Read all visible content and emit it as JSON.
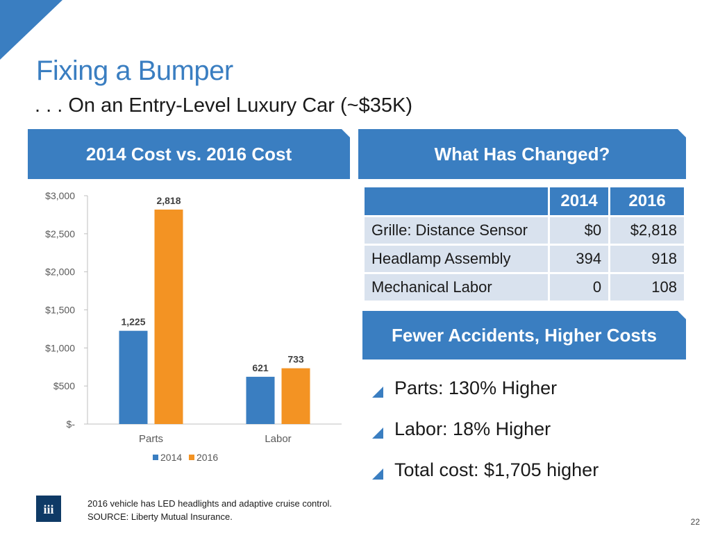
{
  "slide": {
    "title": "Fixing a Bumper",
    "subtitle": ". . . On an Entry-Level Luxury Car (~$35K)",
    "page_number": "22"
  },
  "left_banner": {
    "label": "2014 Cost vs. 2016 Cost"
  },
  "right_banner": {
    "label": "What Has Changed?"
  },
  "fewer_banner": {
    "label": "Fewer Accidents, Higher Costs"
  },
  "colors": {
    "accent": "#3a7ec1",
    "series_2014": "#3a7ec1",
    "series_2016": "#f39323",
    "table_cell": "#d9e2ee",
    "logo": "#0f3a66"
  },
  "chart_data": {
    "type": "bar",
    "categories": [
      "Parts",
      "Labor"
    ],
    "series": [
      {
        "name": "2014",
        "values": [
          1225,
          621
        ],
        "labels": [
          "1,225",
          "621"
        ]
      },
      {
        "name": "2016",
        "values": [
          2818,
          733
        ],
        "labels": [
          "2,818",
          "733"
        ]
      }
    ],
    "ylim": [
      0,
      3000
    ],
    "yticks": [
      0,
      500,
      1000,
      1500,
      2000,
      2500,
      3000
    ],
    "ytick_labels": [
      "$-",
      "$500",
      "$1,000",
      "$1,500",
      "$2,000",
      "$2,500",
      "$3,000"
    ],
    "legend": "bottom",
    "grid": false,
    "title": "",
    "xlabel": "",
    "ylabel": ""
  },
  "table": {
    "headers": [
      "",
      "2014",
      "2016"
    ],
    "rows": [
      {
        "item": "Grille: Distance Sensor",
        "y2014": "$0",
        "y2016": "$2,818"
      },
      {
        "item": "Headlamp Assembly",
        "y2014": "394",
        "y2016": "918"
      },
      {
        "item": "Mechanical Labor",
        "y2014": "0",
        "y2016": "108"
      }
    ]
  },
  "bullets": [
    "Parts: 130% Higher",
    "Labor: 18% Higher",
    "Total cost: $1,705 higher"
  ],
  "footnote": {
    "line1": "2016 vehicle has LED headlights and adaptive cruise control.",
    "line2": "SOURCE: Liberty Mutual Insurance."
  },
  "logo": {
    "text": "iii"
  }
}
